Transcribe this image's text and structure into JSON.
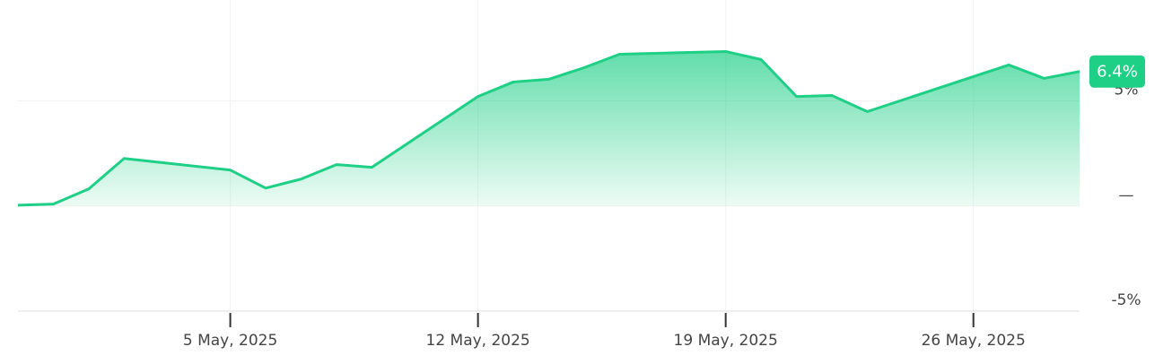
{
  "chart_data": {
    "type": "line",
    "x": [
      "2025-04-29",
      "2025-04-30",
      "2025-05-01",
      "2025-05-02",
      "2025-05-05",
      "2025-05-06",
      "2025-05-07",
      "2025-05-08",
      "2025-05-09",
      "2025-05-12",
      "2025-05-13",
      "2025-05-14",
      "2025-05-15",
      "2025-05-16",
      "2025-05-19",
      "2025-05-20",
      "2025-05-21",
      "2025-05-22",
      "2025-05-23",
      "2025-05-27",
      "2025-05-28",
      "2025-05-29"
    ],
    "values": [
      0.04,
      0.09,
      0.81,
      2.26,
      1.71,
      0.85,
      1.28,
      1.97,
      1.84,
      5.21,
      5.9,
      6.03,
      6.58,
      7.22,
      7.35,
      6.97,
      5.21,
      5.26,
      4.49,
      6.71,
      6.07,
      6.4
    ],
    "value_labels": [
      null,
      null,
      null,
      null,
      null,
      null,
      null,
      null,
      null,
      null,
      null,
      null,
      null,
      null,
      null,
      null,
      null,
      null,
      null,
      null,
      null,
      "6.4%"
    ],
    "color": "#1ecf86",
    "xlim": [
      "2025-04-29",
      "2025-05-29"
    ],
    "xticks": [
      {
        "value": "2025-05-05",
        "label": "5 May, 2025"
      },
      {
        "value": "2025-05-12",
        "label": "12 May, 2025"
      },
      {
        "value": "2025-05-19",
        "label": "19 May, 2025"
      },
      {
        "value": "2025-05-26",
        "label": "26 May, 2025"
      }
    ],
    "ylim": [
      -5,
      9.8
    ],
    "yticks": [
      {
        "value": -5,
        "label": "-5%"
      },
      {
        "value": 0,
        "label": "—"
      },
      {
        "value": 5,
        "label": "5%"
      }
    ],
    "grid": true
  }
}
